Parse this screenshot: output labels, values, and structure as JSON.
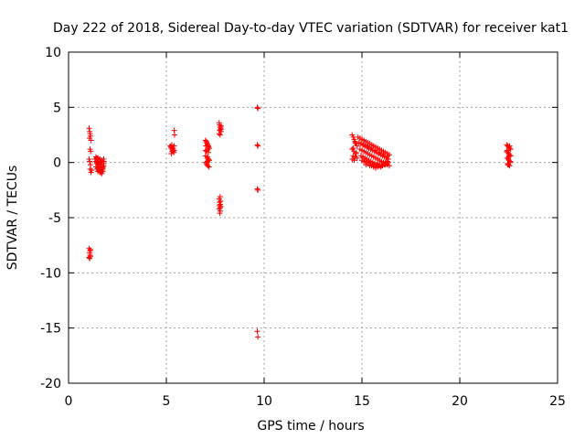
{
  "chart_data": {
    "type": "scatter",
    "title": "Day 222 of 2018, Sidereal Day-to-day VTEC variation (SDTVAR) for receiver kat1",
    "xlabel": "GPS time / hours",
    "ylabel": "SDTVAR / TECUs",
    "xlim": [
      0,
      25
    ],
    "ylim": [
      -20,
      10
    ],
    "xticks": [
      0,
      5,
      10,
      15,
      20,
      25
    ],
    "yticks": [
      -20,
      -15,
      -10,
      -5,
      0,
      5,
      10
    ],
    "xtick_labels": [
      "0",
      "5",
      "10",
      "15",
      "20",
      "25"
    ],
    "ytick_labels": [
      "-20",
      "-15",
      "-10",
      "-5",
      "0",
      "5",
      "10"
    ],
    "grid": true,
    "marker": "+",
    "color": "#ff0000",
    "series": [
      {
        "name": "kat1",
        "x": [
          1.05,
          1.08,
          1.1,
          1.12,
          1.07,
          1.15,
          1.1,
          1.13,
          1.05,
          1.08,
          1.12,
          1.1,
          1.15,
          1.18,
          1.05,
          1.1,
          1.12,
          1.08,
          1.1,
          1.05,
          1.08,
          1.12,
          1.35,
          1.4,
          1.45,
          1.5,
          1.55,
          1.6,
          1.65,
          1.7,
          1.75,
          1.8,
          1.4,
          1.5,
          1.6,
          1.7,
          1.8,
          1.45,
          1.55,
          1.65,
          1.75,
          1.5,
          1.6,
          1.7,
          1.45,
          1.55,
          1.65,
          1.75,
          1.5,
          1.6,
          1.7,
          1.8,
          1.4,
          1.55,
          1.65,
          1.75,
          1.45,
          1.6,
          1.7,
          1.5,
          1.8,
          1.65,
          5.2,
          5.25,
          5.3,
          5.35,
          5.4,
          5.22,
          5.28,
          5.33,
          5.38,
          5.25,
          5.3,
          5.35,
          5.4,
          5.4,
          5.42,
          7.0,
          7.05,
          7.1,
          7.15,
          7.2,
          7.0,
          7.05,
          7.1,
          7.15,
          7.2,
          7.02,
          7.08,
          7.12,
          7.18,
          7.05,
          7.1,
          7.15,
          7.0,
          7.1,
          7.05,
          7.12,
          7.15,
          7.08,
          7.02,
          7.18,
          7.7,
          7.72,
          7.75,
          7.78,
          7.8,
          7.7,
          7.75,
          7.8,
          7.72,
          7.78,
          7.75,
          7.7,
          7.72,
          7.75,
          7.78,
          7.7,
          7.75,
          7.73,
          7.77,
          7.72,
          7.75,
          9.65,
          9.68,
          9.65,
          9.68,
          9.65,
          9.68,
          9.65,
          9.68,
          14.5,
          14.55,
          14.6,
          14.65,
          14.7,
          14.75,
          14.5,
          14.6,
          14.7,
          14.55,
          14.65,
          14.75,
          14.5,
          14.6,
          14.7,
          14.55,
          14.65,
          14.8,
          14.9,
          15.0,
          15.1,
          15.2,
          15.3,
          15.4,
          15.5,
          15.6,
          15.7,
          15.8,
          15.9,
          16.0,
          16.1,
          16.2,
          16.3,
          16.4,
          14.85,
          14.95,
          15.05,
          15.15,
          15.25,
          15.35,
          15.45,
          15.55,
          15.65,
          15.75,
          15.85,
          15.95,
          16.05,
          16.15,
          16.25,
          16.35,
          14.9,
          15.0,
          15.1,
          15.2,
          15.3,
          15.4,
          15.5,
          15.6,
          15.7,
          15.8,
          15.9,
          16.0,
          16.1,
          16.2,
          16.3,
          16.4,
          14.95,
          15.05,
          15.15,
          15.25,
          15.35,
          15.45,
          15.55,
          15.65,
          15.75,
          15.85,
          15.95,
          16.05,
          16.15,
          16.25,
          16.35,
          15.0,
          15.1,
          15.2,
          15.3,
          15.4,
          15.5,
          15.6,
          15.7,
          15.8,
          15.9,
          16.0,
          16.1,
          16.2,
          16.3,
          15.1,
          15.3,
          15.5,
          15.7,
          15.9,
          16.1,
          16.3,
          15.2,
          15.4,
          15.6,
          15.8,
          16.0,
          16.2,
          22.4,
          22.45,
          22.5,
          22.55,
          22.6,
          22.4,
          22.45,
          22.5,
          22.55,
          22.6,
          22.42,
          22.48,
          22.52,
          22.58,
          22.45,
          22.5,
          22.55,
          22.42,
          22.5,
          22.58,
          22.45,
          22.52,
          22.55
        ],
        "y": [
          3.1,
          2.8,
          2.6,
          2.4,
          2.2,
          2.0,
          1.2,
          1.0,
          0.3,
          0.1,
          -0.2,
          -0.6,
          -0.9,
          -0.7,
          -7.8,
          -8.0,
          -7.9,
          -8.2,
          -8.4,
          -8.6,
          -8.7,
          -8.5,
          0.3,
          0.1,
          0.0,
          -0.2,
          -0.4,
          -0.6,
          -0.8,
          -0.7,
          -0.5,
          -0.3,
          0.5,
          0.4,
          0.3,
          0.2,
          0.1,
          -0.1,
          -0.3,
          -0.5,
          -0.4,
          -0.8,
          -0.9,
          -1.0,
          -0.6,
          -0.7,
          -0.9,
          -0.8,
          0.2,
          0.1,
          0.0,
          -0.1,
          -0.4,
          -0.2,
          -0.3,
          -0.6,
          0.4,
          0.3,
          0.2,
          -0.5,
          0.3,
          -0.1,
          1.5,
          1.3,
          1.2,
          1.0,
          1.1,
          1.4,
          1.6,
          1.1,
          0.9,
          0.8,
          1.0,
          1.3,
          1.5,
          2.9,
          2.5,
          2.0,
          1.8,
          1.6,
          1.5,
          1.3,
          1.1,
          1.0,
          0.5,
          0.3,
          0.2,
          0.0,
          -0.2,
          -0.3,
          -0.4,
          1.9,
          1.7,
          1.4,
          0.6,
          0.1,
          -0.1,
          1.2,
          0.9,
          0.4,
          1.5,
          0.2,
          3.6,
          3.4,
          3.2,
          3.0,
          2.8,
          2.6,
          2.5,
          3.3,
          2.9,
          3.1,
          -3.1,
          -3.3,
          -3.6,
          -3.8,
          -4.0,
          -4.2,
          -4.4,
          -4.6,
          -3.5,
          -3.9,
          -4.1,
          5.0,
          4.9,
          1.6,
          1.5,
          -2.4,
          -2.5,
          -15.3,
          -15.8,
          2.5,
          2.3,
          2.1,
          1.9,
          1.7,
          1.5,
          1.2,
          1.0,
          0.8,
          0.6,
          0.5,
          0.4,
          0.3,
          0.2,
          0.9,
          1.3,
          1.8,
          2.3,
          2.2,
          2.1,
          2.0,
          1.9,
          1.8,
          1.7,
          1.6,
          1.5,
          1.4,
          1.3,
          1.2,
          1.1,
          1.0,
          0.9,
          0.8,
          0.7,
          1.8,
          1.7,
          1.6,
          1.5,
          1.4,
          1.3,
          1.2,
          1.1,
          1.0,
          0.9,
          0.8,
          0.7,
          0.6,
          0.5,
          0.4,
          0.3,
          1.2,
          1.1,
          1.0,
          0.9,
          0.8,
          0.7,
          0.6,
          0.5,
          0.4,
          0.3,
          0.2,
          0.1,
          0.0,
          -0.1,
          -0.2,
          -0.3,
          0.6,
          0.5,
          0.4,
          0.3,
          0.2,
          0.1,
          0.0,
          -0.1,
          -0.2,
          -0.3,
          -0.4,
          -0.3,
          -0.2,
          -0.1,
          0.0,
          0.2,
          0.1,
          0.0,
          -0.1,
          -0.2,
          -0.3,
          -0.4,
          -0.5,
          -0.4,
          -0.3,
          -0.2,
          -0.1,
          0.0,
          0.1,
          1.6,
          1.4,
          1.3,
          1.1,
          0.9,
          0.8,
          0.6,
          -0.2,
          -0.3,
          -0.2,
          -0.1,
          -0.3,
          -0.2,
          1.6,
          1.5,
          1.4,
          1.3,
          1.2,
          1.0,
          0.9,
          0.8,
          0.7,
          0.6,
          0.4,
          0.3,
          0.2,
          0.1,
          -0.1,
          -0.2,
          -0.3,
          1.1,
          0.5,
          0.0,
          -0.2,
          0.6,
          1.5
        ]
      }
    ]
  }
}
